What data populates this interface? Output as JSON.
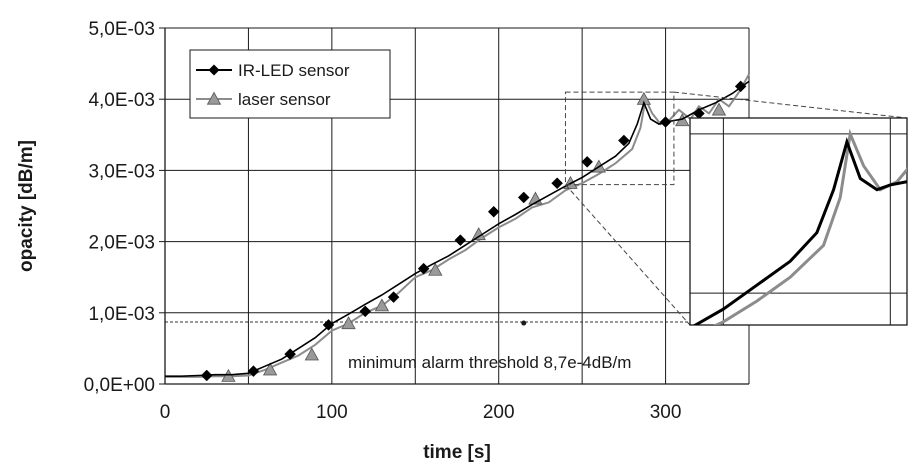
{
  "chart_data": {
    "type": "line",
    "title": "",
    "xlabel": "time [s]",
    "ylabel": "opacity [dB/m]",
    "xlim": [
      0,
      350
    ],
    "ylim": [
      0,
      0.005
    ],
    "xticks": [
      0,
      100,
      200,
      300
    ],
    "xtick_labels": [
      "0",
      "100",
      "200",
      "300"
    ],
    "yticks": [
      0,
      0.001,
      0.002,
      0.003,
      0.004,
      0.005
    ],
    "ytick_labels": [
      "0,0E+00",
      "1,0E-03",
      "2,0E-03",
      "3,0E-03",
      "4,0E-03",
      "5,0E-03"
    ],
    "grid": true,
    "legend_position": "top-left",
    "series": [
      {
        "name": "IR-LED sensor",
        "color": "#000000",
        "marker": "diamond",
        "x": [
          0,
          10,
          20,
          30,
          40,
          50,
          60,
          70,
          80,
          90,
          100,
          110,
          120,
          130,
          140,
          150,
          160,
          170,
          180,
          190,
          200,
          210,
          220,
          230,
          240,
          250,
          260,
          270,
          278,
          283,
          287,
          291,
          296,
          300,
          310,
          320,
          330,
          340,
          350
        ],
        "y": [
          0.00011,
          0.00011,
          0.00012,
          0.00013,
          0.00013,
          0.00015,
          0.00025,
          0.00035,
          0.0005,
          0.00065,
          0.00085,
          0.00098,
          0.00112,
          0.00125,
          0.0014,
          0.00155,
          0.00168,
          0.0018,
          0.00195,
          0.0021,
          0.00225,
          0.00238,
          0.00252,
          0.00265,
          0.00278,
          0.0029,
          0.00305,
          0.0032,
          0.00338,
          0.00365,
          0.00395,
          0.00372,
          0.00365,
          0.00368,
          0.00372,
          0.00385,
          0.00395,
          0.00408,
          0.00425
        ],
        "marker_x": [
          25,
          53,
          75,
          98,
          120,
          137,
          155,
          177,
          197,
          215,
          235,
          253,
          275,
          300,
          320,
          345
        ],
        "marker_y": [
          0.00012,
          0.00018,
          0.00042,
          0.00083,
          0.00102,
          0.00122,
          0.00162,
          0.00202,
          0.00242,
          0.00262,
          0.00282,
          0.00312,
          0.00342,
          0.00368,
          0.0038,
          0.00418
        ]
      },
      {
        "name": "laser sensor",
        "color": "#8c8c8c",
        "marker": "triangle",
        "x": [
          0,
          10,
          20,
          30,
          40,
          50,
          60,
          70,
          80,
          90,
          100,
          110,
          120,
          130,
          140,
          150,
          160,
          170,
          180,
          190,
          200,
          210,
          220,
          230,
          240,
          250,
          260,
          270,
          280,
          285,
          288,
          292,
          297,
          302,
          308,
          315,
          320,
          326,
          332,
          338,
          344,
          350
        ],
        "y": [
          0.0001,
          0.0001,
          0.0001,
          0.00011,
          0.00011,
          0.00012,
          0.0002,
          0.0003,
          0.0004,
          0.00055,
          0.00075,
          0.00085,
          0.001,
          0.0011,
          0.00128,
          0.0015,
          0.0016,
          0.00175,
          0.00188,
          0.00205,
          0.0022,
          0.00232,
          0.00248,
          0.00255,
          0.00272,
          0.00282,
          0.00295,
          0.0031,
          0.0033,
          0.0036,
          0.004,
          0.0038,
          0.00365,
          0.0037,
          0.00385,
          0.00372,
          0.0039,
          0.0038,
          0.004,
          0.0039,
          0.0041,
          0.00435
        ],
        "marker_x": [
          38,
          63,
          88,
          110,
          130,
          162,
          188,
          222,
          243,
          260,
          287,
          310,
          332
        ],
        "marker_y": [
          0.00011,
          0.0002,
          0.00041,
          0.00085,
          0.0011,
          0.0016,
          0.0021,
          0.0026,
          0.00282,
          0.00305,
          0.004,
          0.0037,
          0.00385
        ]
      }
    ],
    "threshold": {
      "value": 0.00087,
      "label": "minimum alarm threshold 8,7e-4dB/m",
      "marker_x": 215
    },
    "zoom_region": {
      "x": [
        240,
        305
      ],
      "y": [
        0.0028,
        0.0041
      ]
    }
  }
}
